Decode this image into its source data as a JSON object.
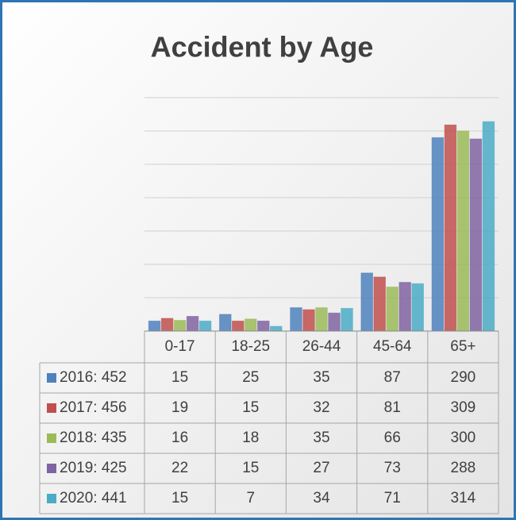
{
  "chart_data": {
    "type": "bar",
    "title": "Accident by Age",
    "categories": [
      "0-17",
      "18-25",
      "26-44",
      "45-64",
      "65+"
    ],
    "series": [
      {
        "name": "2016: 452",
        "color": "#4f81bd",
        "values": [
          15,
          25,
          35,
          87,
          290
        ]
      },
      {
        "name": "2017: 456",
        "color": "#c0504d",
        "values": [
          19,
          15,
          32,
          81,
          309
        ]
      },
      {
        "name": "2018: 435",
        "color": "#9bbb59",
        "values": [
          16,
          18,
          35,
          66,
          300
        ]
      },
      {
        "name": "2019: 425",
        "color": "#8064a2",
        "values": [
          22,
          15,
          27,
          73,
          288
        ]
      },
      {
        "name": "2020: 441",
        "color": "#4bacc6",
        "values": [
          15,
          7,
          34,
          71,
          314
        ]
      }
    ],
    "ylim": [
      0,
      350
    ],
    "yticks": [
      0,
      50,
      100,
      150,
      200,
      250,
      300,
      350
    ],
    "grid": true
  }
}
